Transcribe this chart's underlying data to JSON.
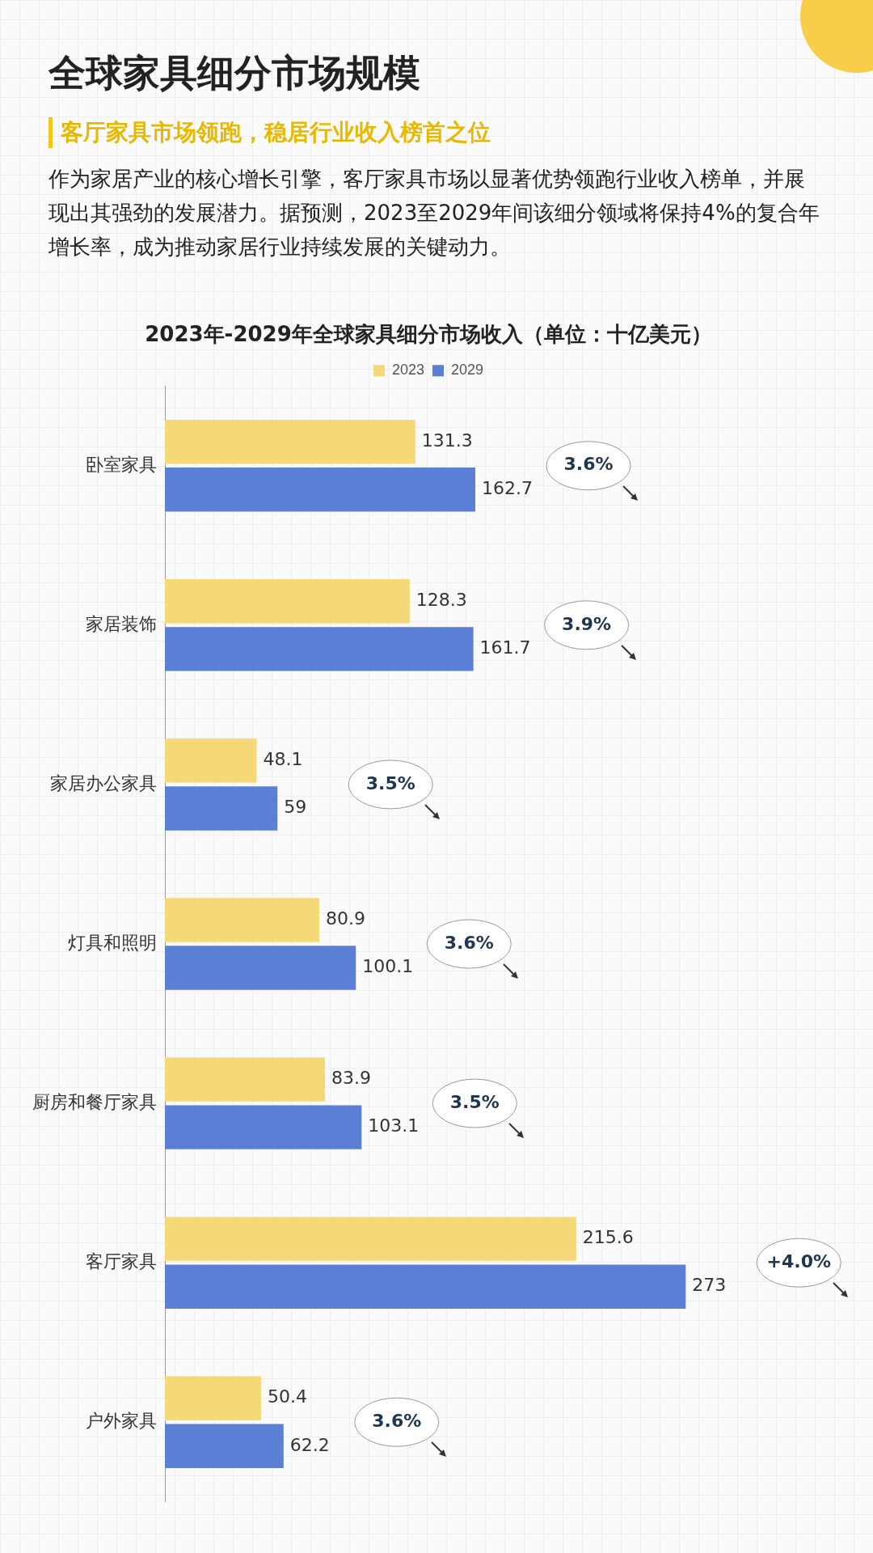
{
  "chart_data": {
    "type": "bar",
    "orientation": "horizontal",
    "title": "2023年-2029年全球家具细分市场收入（单位：十亿美元）",
    "categories": [
      "卧室家具",
      "家居装饰",
      "家居办公家具",
      "灯具和照明",
      "厨房和餐厅家具",
      "客厅家具",
      "户外家具"
    ],
    "series": [
      {
        "name": "2023",
        "color": "#f5d878",
        "values": [
          131.3,
          128.3,
          48.1,
          80.9,
          83.9,
          215.6,
          50.4
        ]
      },
      {
        "name": "2029",
        "color": "#5a7fd4",
        "values": [
          162.7,
          161.7,
          59,
          100.1,
          103.1,
          273,
          62.2
        ]
      }
    ],
    "data_labels": true,
    "legend": "top",
    "grid": false,
    "tick_labels": "y",
    "annotations": [
      {
        "text": "全球家具细分市场规模"
      },
      {
        "text": "客厅家具市场领跑，稳居行业收入榜首之位"
      },
      {
        "text": "作为家居产业的核心增长引擎，客厅家具市场以显著优势领跑行业收入榜单，并展现出其强劲的发展潜力。据预测，2023至2029年间该细分领域将保持4%的复合年增长率，成为推动家居行业持续发展的关键动力。"
      },
      "3.6%",
      "3.9%",
      "3.5%",
      "3.6%",
      "3.5%",
      "+4.0%",
      "3.6%"
    ]
  }
}
